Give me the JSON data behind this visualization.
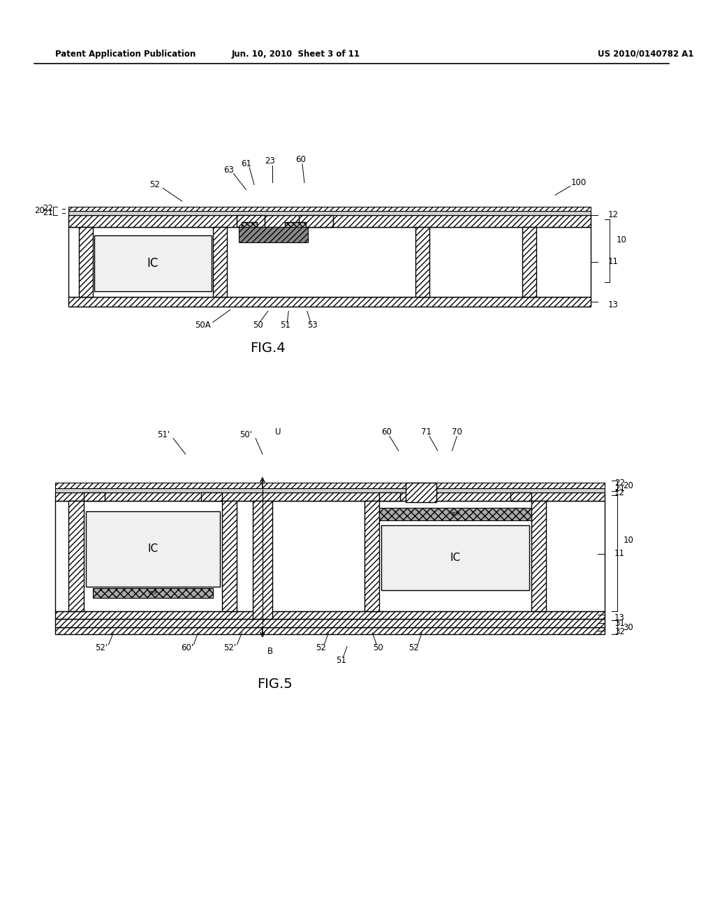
{
  "bg_color": "#ffffff",
  "header_left": "Patent Application Publication",
  "header_mid": "Jun. 10, 2010  Sheet 3 of 11",
  "header_right": "US 2010/0140782 A1",
  "fig4_label": "FIG.4",
  "fig5_label": "FIG.5"
}
